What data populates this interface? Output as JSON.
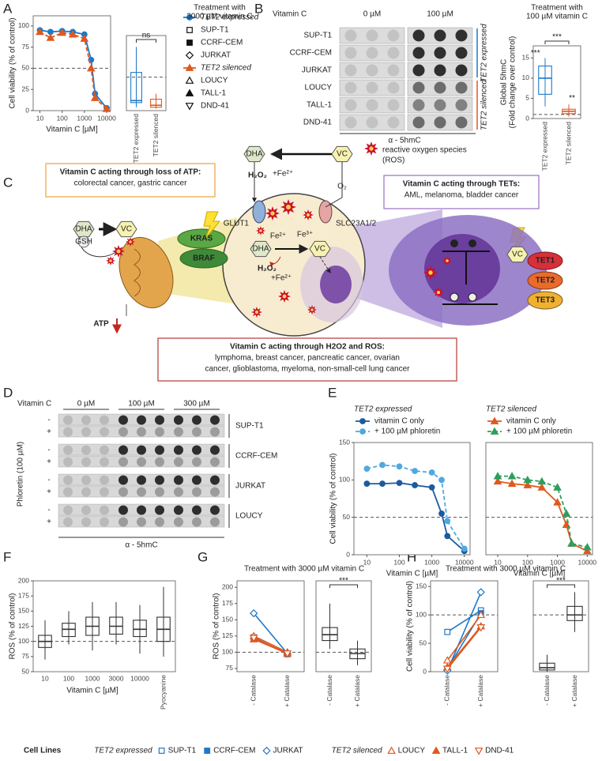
{
  "panel_labels": [
    "A",
    "B",
    "C",
    "D",
    "E",
    "F",
    "G",
    "H"
  ],
  "chart_data": [
    {
      "type": "line",
      "xlog": true,
      "xlim": [
        5,
        15000
      ],
      "ylim": [
        0,
        112
      ],
      "xticks": [
        10,
        100,
        1000,
        10000
      ],
      "yticks": [
        0,
        25,
        50,
        75,
        100
      ],
      "xlabel": "Vitamin C [µM]",
      "ylabel": "Cell viability (% of control)",
      "reference_line": 50,
      "legend": "outside-right",
      "series": [
        {
          "name": "TET2 expressed",
          "color": "#1f78c8",
          "marker": "circle",
          "x": [
            10,
            30,
            100,
            300,
            1000,
            2000,
            3000,
            10000
          ],
          "values": [
            95,
            93,
            94,
            93,
            90,
            60,
            20,
            3
          ]
        },
        {
          "name": "TET2 silenced",
          "color": "#e0581f",
          "marker": "triangle",
          "x": [
            10,
            30,
            100,
            300,
            1000,
            2000,
            3000,
            10000
          ],
          "values": [
            93,
            86,
            92,
            90,
            85,
            50,
            15,
            2
          ]
        }
      ],
      "legend_items": [
        [
          {
            "name": "SUP-T1",
            "marker": "square-open"
          },
          {
            "name": "CCRF-CEM",
            "marker": "square"
          },
          {
            "name": "JURKAT",
            "marker": "diamond-open"
          }
        ],
        [
          {
            "name": "LOUCY",
            "marker": "triangle-open"
          },
          {
            "name": "TALL-1",
            "marker": "triangle"
          },
          {
            "name": "DND-41",
            "marker": "triangle-down-open"
          }
        ]
      ]
    },
    {
      "type": "box",
      "title": [
        "Treatment with",
        "3000 µM vitamin C"
      ],
      "categories": [
        "TET2 expressed",
        "TET2 silenced"
      ],
      "colors": [
        "#1f78c8",
        "#e0581f"
      ],
      "ylim": [
        0,
        112
      ],
      "reference_line": 50,
      "annotations": [
        "ns"
      ],
      "boxes": [
        {
          "low": 5,
          "q1": 12,
          "median": 15,
          "q3": 57,
          "high": 95
        },
        {
          "low": 3,
          "q1": 5,
          "median": 8,
          "q3": 17,
          "high": 25
        }
      ]
    },
    {
      "type": "box",
      "title": [
        "Treatment with",
        "100 µM vitamin C"
      ],
      "categories": [
        "TET2 expressed",
        "TET2 silenced"
      ],
      "colors": [
        "#1f78c8",
        "#e0581f"
      ],
      "ylim": [
        0,
        18
      ],
      "yticks": [
        0,
        5,
        10,
        15
      ],
      "ylabel": [
        "Global 5hmC",
        "(Fold change over control)"
      ],
      "reference_line": 1,
      "annotations": [
        "***",
        "***",
        "**"
      ],
      "boxes": [
        {
          "low": 3,
          "q1": 6,
          "median": 10,
          "q3": 13,
          "high": 15
        },
        {
          "low": 0.5,
          "q1": 1.2,
          "median": 1.8,
          "q3": 2.3,
          "high": 3.5
        }
      ]
    },
    {
      "type": "line",
      "xlog": true,
      "xlim": [
        4,
        15000
      ],
      "ylim": [
        0,
        150
      ],
      "xticks": [
        10,
        100,
        1000,
        10000
      ],
      "yticks": [
        0,
        50,
        100,
        150
      ],
      "title": "TET2 expressed",
      "xlabel": "Vitamin C [µM]",
      "ylabel": "Cell viability (% of control)",
      "reference_line": 50,
      "legend": "top",
      "series": [
        {
          "name": "vitamin C only",
          "color": "#1d5a9e",
          "marker": "circle",
          "x": [
            10,
            30,
            100,
            300,
            1000,
            2000,
            3000,
            10000
          ],
          "values": [
            95,
            95,
            96,
            93,
            90,
            55,
            25,
            5
          ]
        },
        {
          "name": "+ 100 µM phloretin",
          "color": "#4fa8e0",
          "marker": "circle",
          "x": [
            10,
            30,
            100,
            300,
            1000,
            2000,
            3000,
            10000
          ],
          "values": [
            115,
            120,
            118,
            112,
            110,
            100,
            45,
            8
          ]
        }
      ]
    },
    {
      "type": "line",
      "xlog": true,
      "xlim": [
        4,
        15000
      ],
      "ylim": [
        0,
        150
      ],
      "xticks": [
        10,
        100,
        1000,
        10000
      ],
      "title": "TET2 silenced",
      "xlabel": "Vitamin C [µM]",
      "reference_line": 50,
      "legend": "top",
      "series": [
        {
          "name": "vitamin C only",
          "color": "#e0581f",
          "marker": "triangle",
          "x": [
            10,
            30,
            100,
            300,
            1000,
            2000,
            3000,
            10000
          ],
          "values": [
            98,
            95,
            93,
            90,
            70,
            40,
            15,
            5
          ]
        },
        {
          "name": "+ 100 µM phloretin",
          "color": "#2e9e5b",
          "marker": "triangle",
          "x": [
            10,
            30,
            100,
            300,
            1000,
            2000,
            3000,
            10000
          ],
          "values": [
            105,
            105,
            100,
            98,
            90,
            55,
            15,
            10
          ]
        }
      ]
    },
    {
      "type": "box",
      "categories": [
        "10",
        "100",
        "1000",
        "3000",
        "10000",
        "Pyocyanine"
      ],
      "colors": [
        "#333",
        "#333",
        "#333",
        "#333",
        "#333",
        "#333"
      ],
      "xlabel": "Vitamin C [µM]",
      "ylabel": "ROS (% of control)",
      "ylim": [
        50,
        200
      ],
      "yticks": [
        50,
        75,
        100,
        125,
        150,
        175,
        200
      ],
      "reference_line": 100,
      "boxes": [
        {
          "low": 70,
          "q1": 90,
          "median": 100,
          "q3": 110,
          "high": 135
        },
        {
          "low": 95,
          "q1": 108,
          "median": 120,
          "q3": 130,
          "high": 150
        },
        {
          "low": 85,
          "q1": 110,
          "median": 125,
          "q3": 140,
          "high": 165
        },
        {
          "low": 95,
          "q1": 112,
          "median": 125,
          "q3": 140,
          "high": 165
        },
        {
          "low": 80,
          "q1": 108,
          "median": 120,
          "q3": 135,
          "high": 160
        },
        {
          "low": 75,
          "q1": 100,
          "median": 120,
          "q3": 140,
          "high": 190
        }
      ]
    },
    {
      "type": "paired",
      "title": "Treatment with 3000 µM vitamin C",
      "categories": [
        "- Catalase",
        "+ Catalase"
      ],
      "ylabel": "ROS (% of control)",
      "ylim": [
        70,
        210
      ],
      "yticks": [
        75,
        100,
        125,
        150,
        175,
        200
      ],
      "reference_line": 100,
      "series": [
        {
          "color": "#1f78c8",
          "marker": "square-open",
          "values": [
            122,
            98
          ]
        },
        {
          "color": "#1f78c8",
          "marker": "square",
          "values": [
            123,
            97
          ]
        },
        {
          "color": "#1f78c8",
          "marker": "diamond-open",
          "values": [
            160,
            98
          ]
        },
        {
          "color": "#e0581f",
          "marker": "triangle-open",
          "values": [
            125,
            100
          ]
        },
        {
          "color": "#e0581f",
          "marker": "triangle",
          "values": [
            120,
            98
          ]
        },
        {
          "color": "#e0581f",
          "marker": "triangle-down-open",
          "values": [
            122,
            98
          ]
        }
      ]
    },
    {
      "type": "box",
      "categories": [
        "- Catalase",
        "+ Catalase"
      ],
      "colors": [
        "#333",
        "#333"
      ],
      "ylim": [
        70,
        210
      ],
      "reference_line": 100,
      "annotations": [
        "***"
      ],
      "boxes": [
        {
          "low": 105,
          "q1": 118,
          "median": 127,
          "q3": 138,
          "high": 175
        },
        {
          "low": 80,
          "q1": 90,
          "median": 98,
          "q3": 105,
          "high": 118
        }
      ]
    },
    {
      "type": "paired",
      "title": "Treatment with 3000 µM vitamin C",
      "categories": [
        "- Catalase",
        "+ Catalase"
      ],
      "ylabel": "Cell viability (% of control)",
      "ylim": [
        0,
        160
      ],
      "yticks": [
        0,
        50,
        100,
        150
      ],
      "reference_line": 100,
      "series": [
        {
          "color": "#1f78c8",
          "marker": "square-open",
          "values": [
            70,
            108
          ]
        },
        {
          "color": "#1f78c8",
          "marker": "square",
          "values": [
            5,
            103
          ]
        },
        {
          "color": "#1f78c8",
          "marker": "diamond-open",
          "values": [
            2,
            140
          ]
        },
        {
          "color": "#e0581f",
          "marker": "triangle-open",
          "values": [
            20,
            100
          ]
        },
        {
          "color": "#e0581f",
          "marker": "triangle",
          "values": [
            8,
            80
          ]
        },
        {
          "color": "#e0581f",
          "marker": "triangle-down-open",
          "values": [
            5,
            78
          ]
        }
      ]
    },
    {
      "type": "box",
      "categories": [
        "- Catalase",
        "+ Catalase"
      ],
      "colors": [
        "#333",
        "#333"
      ],
      "ylim": [
        0,
        160
      ],
      "reference_line": 100,
      "annotations": [
        "***"
      ],
      "boxes": [
        {
          "low": 0,
          "q1": 3,
          "median": 7,
          "q3": 15,
          "high": 30
        },
        {
          "low": 70,
          "q1": 90,
          "median": 100,
          "q3": 115,
          "high": 140
        }
      ]
    }
  ],
  "blot_b": {
    "header": "Vitamin C",
    "conditions": [
      "0 µM",
      "100 µM"
    ],
    "rows": [
      "SUP-T1",
      "CCRF-CEM",
      "JURKAT",
      "LOUCY",
      "TALL-1",
      "DND-41"
    ],
    "groups": [
      {
        "name": "TET2 expressed",
        "color": "#1f78c8"
      },
      {
        "name": "TET2 silenced",
        "color": "#e0581f"
      }
    ],
    "antibody": "α - 5hmC"
  },
  "blot_d": {
    "header": "Vitamin C",
    "conditions": [
      "0 µM",
      "100 µM",
      "300 µM"
    ],
    "treatment": "Phloretin (100 µM)",
    "signs": [
      "-",
      "+"
    ],
    "rows": [
      "SUP-T1",
      "CCRF-CEM",
      "JURKAT",
      "LOUCY"
    ],
    "antibody": "α - 5hmC"
  },
  "diagram": {
    "boxes": [
      {
        "lines": [
          "Vitamin C acting through loss of ATP:",
          "colorectal cancer, gastric cancer"
        ]
      },
      {
        "lines": [
          "Vitamin C acting through TETs:",
          "AML, melanoma, bladder cancer"
        ]
      },
      {
        "lines": [
          "Vitamin C acting through H2O2 and ROS:",
          "lymphoma, breast cancer, pancreatic cancer, ovarian",
          "cancer, glioblastoma, myeloma, non-small-cell lung cancer"
        ]
      }
    ],
    "labels": [
      "reactive oxygen species",
      "(ROS)",
      "DHA",
      "VC",
      "O₂",
      "H₂O₂",
      "+Fe²⁺",
      "GLUT1",
      "SLC23A1/2",
      "Fe²⁺",
      "Fe³⁺",
      "DHA",
      "VC",
      "H₂O₂",
      "+Fe²⁺",
      "DHA",
      "GSH",
      "VC",
      "KRAS",
      "BRAF",
      "ATP",
      "VC",
      "TET1",
      "TET2",
      "TET3"
    ]
  },
  "cell_line_legend": {
    "title": "Cell Lines",
    "groups": [
      {
        "name": "TET2 expressed",
        "color": "#1f78c8",
        "items": [
          {
            "name": "SUP-T1",
            "marker": "square-open"
          },
          {
            "name": "CCRF-CEM",
            "marker": "square"
          },
          {
            "name": "JURKAT",
            "marker": "diamond-open"
          }
        ]
      },
      {
        "name": "TET2 silenced",
        "color": "#e0581f",
        "items": [
          {
            "name": "LOUCY",
            "marker": "triangle-open"
          },
          {
            "name": "TALL-1",
            "marker": "triangle"
          },
          {
            "name": "DND-41",
            "marker": "triangle-down-open"
          }
        ]
      }
    ]
  }
}
